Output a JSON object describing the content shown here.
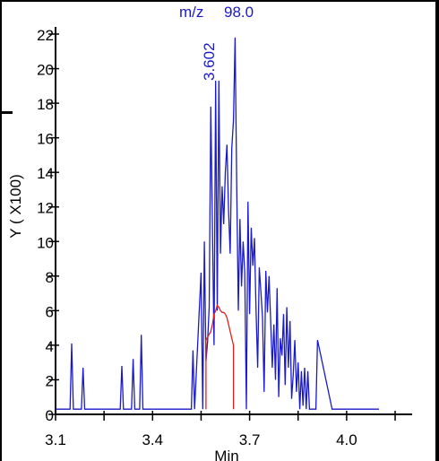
{
  "chart_data": {
    "type": "line",
    "xlabel": "Min",
    "ylabel": "Y ( X100)",
    "xlim": [
      3.1,
      4.1
    ],
    "ylim": [
      0,
      22
    ],
    "xticks": [
      3.1,
      3.4,
      3.7,
      4.0
    ],
    "xtick_labels": [
      "3.1",
      "3.4",
      "3.7",
      "4.0"
    ],
    "yticks": [
      0,
      2,
      4,
      6,
      8,
      10,
      12,
      14,
      16,
      18,
      20,
      22
    ],
    "ytick_labels": [
      "0",
      "2",
      "4",
      "6",
      "8",
      "10",
      "12",
      "14",
      "16",
      "18",
      "20",
      "22"
    ],
    "annotation": {
      "label": "m/z",
      "mz": "98.0",
      "peak_rt": "3.602"
    },
    "grid": false,
    "series": [
      {
        "color": "#1a1acc",
        "x": [
          3.1,
          3.145,
          3.15,
          3.155,
          3.18,
          3.185,
          3.19,
          3.3,
          3.305,
          3.31,
          3.315,
          3.335,
          3.34,
          3.345,
          3.36,
          3.365,
          3.37,
          3.52,
          3.525,
          3.53,
          3.55,
          3.555,
          3.56,
          3.565,
          3.57,
          3.575,
          3.58,
          3.59,
          3.595,
          3.6,
          3.605,
          3.61,
          3.615,
          3.62,
          3.625,
          3.63,
          3.635,
          3.64,
          3.645,
          3.65,
          3.655,
          3.66,
          3.665,
          3.67,
          3.675,
          3.68,
          3.685,
          3.69,
          3.695,
          3.7,
          3.705,
          3.71,
          3.715,
          3.72,
          3.725,
          3.73,
          3.735,
          3.74,
          3.745,
          3.75,
          3.755,
          3.76,
          3.765,
          3.77,
          3.775,
          3.78,
          3.785,
          3.79,
          3.795,
          3.8,
          3.805,
          3.81,
          3.815,
          3.82,
          3.825,
          3.83,
          3.835,
          3.84,
          3.845,
          3.85,
          3.855,
          3.86,
          3.865,
          3.87,
          3.875,
          3.88,
          3.885,
          3.89,
          3.895,
          3.9,
          3.905,
          3.91,
          3.955,
          3.96,
          3.965,
          4.1
        ],
        "values": [
          0.3,
          0.3,
          4.1,
          0.3,
          0.3,
          2.7,
          0.3,
          0.3,
          2.8,
          0.3,
          0.3,
          0.3,
          3.2,
          0.3,
          0.3,
          4.6,
          0.3,
          0.3,
          3.7,
          0.3,
          8.2,
          0.3,
          10.0,
          3.1,
          4.2,
          6.2,
          17.8,
          4.0,
          19.3,
          6.0,
          19.3,
          9.3,
          13.2,
          11.0,
          14.0,
          15.6,
          11.8,
          9.3,
          15.4,
          17.0,
          21.8,
          13.3,
          6.0,
          11.3,
          7.4,
          10.0,
          8.2,
          0.3,
          12.3,
          5.8,
          10.8,
          8.6,
          10.2,
          6.0,
          2.7,
          8.5,
          7.1,
          5.6,
          1.3,
          8.3,
          5.9,
          8.0,
          5.4,
          2.7,
          5.2,
          2.0,
          7.3,
          1.0,
          4.4,
          3.4,
          5.8,
          1.7,
          6.2,
          2.7,
          5.4,
          0.9,
          2.3,
          4.3,
          1.3,
          3.0,
          0.3,
          2.5,
          0.5,
          2.7,
          0.3,
          2.5,
          0.3,
          0.3,
          0.3,
          0.3,
          0.3,
          4.3,
          0.3,
          0.3,
          0.3,
          0.3
        ]
      },
      {
        "color": "#e02020",
        "x": [
          3.565,
          3.565,
          3.58,
          3.585,
          3.59,
          3.595,
          3.6,
          3.605,
          3.61,
          3.615,
          3.62,
          3.625,
          3.63,
          3.635,
          3.64,
          3.645,
          3.65,
          3.65
        ],
        "values": [
          0.3,
          4.3,
          4.8,
          5.2,
          5.8,
          6.0,
          6.3,
          6.2,
          6.0,
          5.9,
          5.9,
          5.8,
          5.6,
          5.2,
          4.8,
          4.4,
          4.0,
          0.3
        ]
      }
    ]
  }
}
